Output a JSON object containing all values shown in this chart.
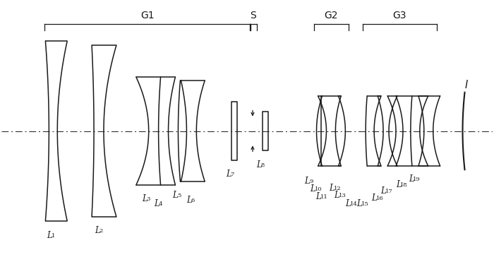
{
  "bg": "#ffffff",
  "fg": "#1a1a1a",
  "lw": 1.1,
  "xlim": [
    0,
    700
  ],
  "ylim": [
    -185,
    185
  ],
  "figw": 7.0,
  "figh": 3.71,
  "dpi": 100
}
